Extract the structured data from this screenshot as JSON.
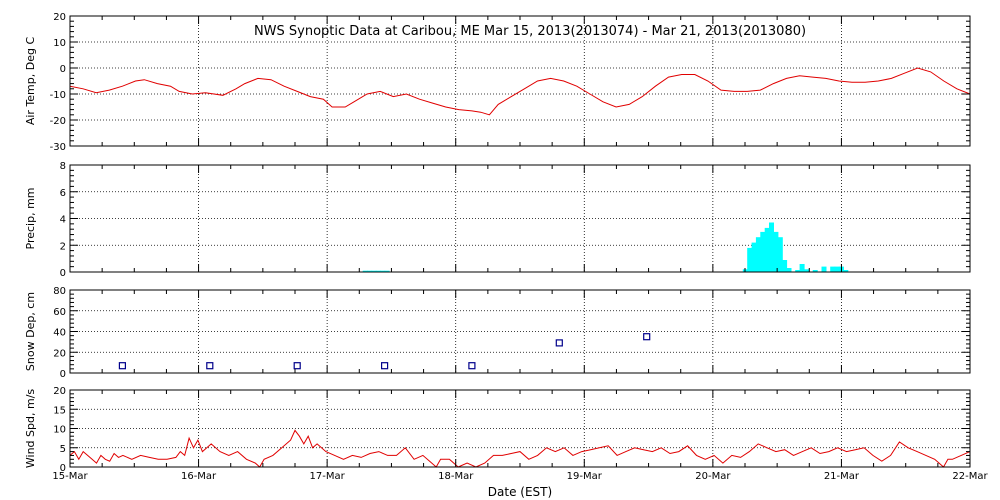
{
  "chart_data": {
    "title": "NWS Synoptic Data at Caribou, ME   Mar 15, 2013(2013074) - Mar 21, 2013(2013080)",
    "xlabel": "Date (EST)",
    "x_ticks": [
      "15-Mar",
      "16-Mar",
      "17-Mar",
      "18-Mar",
      "19-Mar",
      "20-Mar",
      "21-Mar",
      "22-Mar"
    ],
    "x_range_days": [
      0,
      7
    ],
    "grid": "dotted",
    "series_color": "#e00000",
    "bar_color": "#00ffff",
    "marker_color": "#00008b",
    "panels": [
      {
        "type": "line",
        "ylabel": "Air Temp, Deg C",
        "ylim": [
          -30,
          20
        ],
        "yticks": [
          -30,
          -20,
          -10,
          0,
          10,
          20
        ],
        "points": [
          [
            0,
            -7
          ],
          [
            0.15,
            -8
          ],
          [
            0.3,
            -9.5
          ],
          [
            0.45,
            -8.5
          ],
          [
            0.6,
            -7
          ],
          [
            0.75,
            -5
          ],
          [
            0.85,
            -4.5
          ],
          [
            1.0,
            -6
          ],
          [
            1.15,
            -7
          ],
          [
            1.25,
            -9
          ],
          [
            1.4,
            -10
          ],
          [
            1.55,
            -9.5
          ],
          [
            1.75,
            -10.5
          ],
          [
            1.9,
            -8
          ],
          [
            2.0,
            -6
          ],
          [
            2.15,
            -4
          ],
          [
            2.3,
            -4.5
          ],
          [
            2.45,
            -7
          ],
          [
            2.6,
            -9
          ],
          [
            2.75,
            -11
          ],
          [
            2.9,
            -12
          ],
          [
            3.0,
            -15
          ],
          [
            3.15,
            -15
          ],
          [
            3.25,
            -13
          ],
          [
            3.4,
            -10
          ],
          [
            3.55,
            -9
          ],
          [
            3.7,
            -11
          ],
          [
            3.85,
            -10
          ],
          [
            4.0,
            -12
          ],
          [
            4.15,
            -13.5
          ],
          [
            4.3,
            -15
          ],
          [
            4.45,
            -16
          ],
          [
            4.6,
            -16.5
          ],
          [
            4.7,
            -17
          ],
          [
            4.8,
            -18
          ],
          [
            4.9,
            -14
          ],
          [
            5.05,
            -11
          ],
          [
            5.2,
            -8
          ],
          [
            5.35,
            -5
          ],
          [
            5.5,
            -4
          ],
          [
            5.65,
            -5
          ],
          [
            5.8,
            -7
          ],
          [
            5.95,
            -10
          ],
          [
            6.1,
            -13
          ],
          [
            6.25,
            -15
          ],
          [
            6.4,
            -14
          ],
          [
            6.55,
            -11
          ],
          [
            6.7,
            -7
          ],
          [
            6.85,
            -3.5
          ],
          [
            7.0,
            -2.5
          ],
          [
            7.15,
            -2.5
          ],
          [
            7.3,
            -5
          ],
          [
            7.45,
            -8.5
          ],
          [
            7.6,
            -9
          ],
          [
            7.75,
            -9
          ],
          [
            7.9,
            -8.5
          ],
          [
            8.05,
            -6
          ],
          [
            8.2,
            -4
          ],
          [
            8.35,
            -3
          ],
          [
            8.5,
            -3.5
          ],
          [
            8.65,
            -4
          ],
          [
            8.8,
            -5
          ],
          [
            8.95,
            -5.5
          ],
          [
            9.1,
            -5.5
          ],
          [
            9.25,
            -5
          ],
          [
            9.4,
            -4
          ],
          [
            9.55,
            -2
          ],
          [
            9.7,
            0
          ],
          [
            9.85,
            -1.5
          ],
          [
            10.0,
            -5
          ],
          [
            10.15,
            -8
          ],
          [
            10.3,
            -10
          ]
        ]
      },
      {
        "type": "bar",
        "ylabel": "Precip, mm",
        "ylim": [
          0,
          8
        ],
        "yticks": [
          0,
          2,
          4,
          6,
          8
        ],
        "bars": [
          [
            3.35,
            0.1
          ],
          [
            3.4,
            0.1
          ],
          [
            3.45,
            0.1
          ],
          [
            3.5,
            0.1
          ],
          [
            3.55,
            0.1
          ],
          [
            3.6,
            0.1
          ],
          [
            7.7,
            0.2
          ],
          [
            7.75,
            1.8
          ],
          [
            7.8,
            2.2
          ],
          [
            7.85,
            2.6
          ],
          [
            7.9,
            3.0
          ],
          [
            7.95,
            3.3
          ],
          [
            8.0,
            3.7
          ],
          [
            8.05,
            3.0
          ],
          [
            8.1,
            2.6
          ],
          [
            8.15,
            0.9
          ],
          [
            8.2,
            0.3
          ],
          [
            8.3,
            0.15
          ],
          [
            8.35,
            0.6
          ],
          [
            8.4,
            0.2
          ],
          [
            8.5,
            0.15
          ],
          [
            8.6,
            0.4
          ],
          [
            8.7,
            0.4
          ],
          [
            8.75,
            0.4
          ],
          [
            8.8,
            0.4
          ],
          [
            8.85,
            0.15
          ]
        ]
      },
      {
        "type": "scatter",
        "ylabel": "Snow Dep, cm",
        "ylim": [
          0,
          80
        ],
        "yticks": [
          0,
          20,
          40,
          60,
          80
        ],
        "points": [
          [
            0.6,
            7
          ],
          [
            1.6,
            7
          ],
          [
            2.6,
            7
          ],
          [
            3.6,
            7
          ],
          [
            4.6,
            7
          ],
          [
            5.6,
            29
          ],
          [
            6.6,
            35
          ]
        ]
      },
      {
        "type": "line",
        "ylabel": "Wind Spd, m/s",
        "ylim": [
          0,
          20
        ],
        "yticks": [
          0,
          5,
          10,
          15,
          20
        ],
        "points": [
          [
            0,
            3
          ],
          [
            0.05,
            4
          ],
          [
            0.1,
            2
          ],
          [
            0.15,
            4
          ],
          [
            0.2,
            3
          ],
          [
            0.25,
            2
          ],
          [
            0.3,
            1
          ],
          [
            0.35,
            3
          ],
          [
            0.4,
            2
          ],
          [
            0.45,
            1.5
          ],
          [
            0.5,
            3.5
          ],
          [
            0.55,
            2.5
          ],
          [
            0.6,
            3
          ],
          [
            0.7,
            2
          ],
          [
            0.8,
            3
          ],
          [
            0.9,
            2.5
          ],
          [
            1.0,
            2
          ],
          [
            1.1,
            2
          ],
          [
            1.2,
            2.5
          ],
          [
            1.25,
            4
          ],
          [
            1.3,
            3
          ],
          [
            1.35,
            7.5
          ],
          [
            1.4,
            5
          ],
          [
            1.45,
            7
          ],
          [
            1.5,
            4
          ],
          [
            1.55,
            5
          ],
          [
            1.6,
            6
          ],
          [
            1.7,
            4
          ],
          [
            1.8,
            3
          ],
          [
            1.9,
            4
          ],
          [
            2.0,
            2
          ],
          [
            2.1,
            1
          ],
          [
            2.15,
            0
          ],
          [
            2.2,
            2
          ],
          [
            2.3,
            3
          ],
          [
            2.4,
            5
          ],
          [
            2.5,
            7
          ],
          [
            2.55,
            9.5
          ],
          [
            2.6,
            8
          ],
          [
            2.65,
            6
          ],
          [
            2.7,
            8
          ],
          [
            2.75,
            5
          ],
          [
            2.8,
            6
          ],
          [
            2.9,
            4
          ],
          [
            3.0,
            3
          ],
          [
            3.1,
            2
          ],
          [
            3.2,
            3
          ],
          [
            3.3,
            2.5
          ],
          [
            3.4,
            3.5
          ],
          [
            3.5,
            4
          ],
          [
            3.6,
            3
          ],
          [
            3.7,
            3
          ],
          [
            3.8,
            5
          ],
          [
            3.9,
            2
          ],
          [
            4.0,
            3
          ],
          [
            4.1,
            1
          ],
          [
            4.15,
            0
          ],
          [
            4.2,
            2
          ],
          [
            4.3,
            2
          ],
          [
            4.4,
            0
          ],
          [
            4.5,
            1
          ],
          [
            4.6,
            0
          ],
          [
            4.7,
            1
          ],
          [
            4.8,
            3
          ],
          [
            4.9,
            3
          ],
          [
            5.0,
            3.5
          ],
          [
            5.1,
            4
          ],
          [
            5.2,
            2
          ],
          [
            5.3,
            3
          ],
          [
            5.4,
            5
          ],
          [
            5.5,
            4
          ],
          [
            5.6,
            5
          ],
          [
            5.7,
            3
          ],
          [
            5.8,
            4
          ],
          [
            5.9,
            4.5
          ],
          [
            6.0,
            5
          ],
          [
            6.1,
            5.5
          ],
          [
            6.2,
            3
          ],
          [
            6.3,
            4
          ],
          [
            6.4,
            5
          ],
          [
            6.5,
            4.5
          ],
          [
            6.6,
            4
          ],
          [
            6.7,
            5
          ],
          [
            6.8,
            3.5
          ],
          [
            6.9,
            4
          ],
          [
            7.0,
            5.5
          ],
          [
            7.1,
            3
          ],
          [
            7.2,
            2
          ],
          [
            7.3,
            3
          ],
          [
            7.4,
            1
          ],
          [
            7.5,
            3
          ],
          [
            7.6,
            2.5
          ],
          [
            7.7,
            4
          ],
          [
            7.8,
            6
          ],
          [
            7.9,
            5
          ],
          [
            8.0,
            4
          ],
          [
            8.1,
            4.5
          ],
          [
            8.2,
            3
          ],
          [
            8.3,
            4
          ],
          [
            8.4,
            5
          ],
          [
            8.5,
            3.5
          ],
          [
            8.6,
            4
          ],
          [
            8.7,
            5
          ],
          [
            8.8,
            4
          ],
          [
            8.9,
            4.5
          ],
          [
            9.0,
            5
          ],
          [
            9.1,
            3
          ],
          [
            9.2,
            1.5
          ],
          [
            9.3,
            3
          ],
          [
            9.4,
            6.5
          ],
          [
            9.5,
            5
          ],
          [
            9.6,
            4
          ],
          [
            9.7,
            3
          ],
          [
            9.8,
            2
          ],
          [
            9.85,
            1
          ],
          [
            9.9,
            0
          ],
          [
            9.95,
            2
          ],
          [
            10.0,
            2
          ],
          [
            10.1,
            3
          ],
          [
            10.2,
            4
          ]
        ]
      }
    ]
  }
}
